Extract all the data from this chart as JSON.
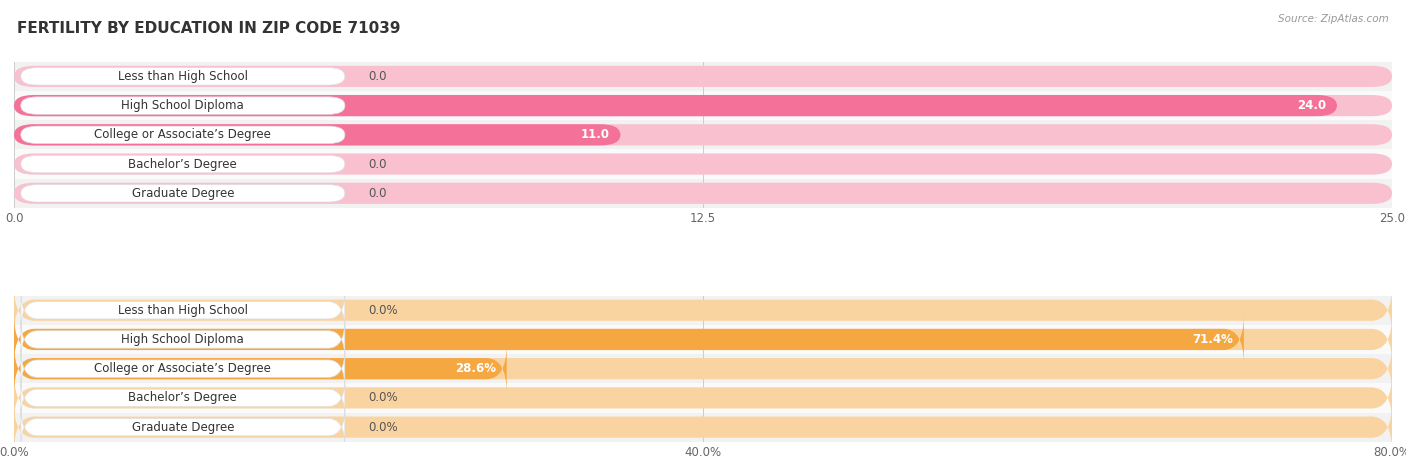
{
  "title": "FERTILITY BY EDUCATION IN ZIP CODE 71039",
  "source": "Source: ZipAtlas.com",
  "top_chart": {
    "categories": [
      "Less than High School",
      "High School Diploma",
      "College or Associate’s Degree",
      "Bachelor’s Degree",
      "Graduate Degree"
    ],
    "values": [
      0.0,
      24.0,
      11.0,
      0.0,
      0.0
    ],
    "xlim": [
      0,
      25.0
    ],
    "xticks": [
      0.0,
      12.5,
      25.0
    ],
    "bar_color": "#F4719A",
    "bar_bg_color": "#F9C0D0",
    "label_color": "#444444",
    "row_colors": [
      "#f2f2f2",
      "#fafafa",
      "#f2f2f2",
      "#fafafa",
      "#f2f2f2"
    ]
  },
  "bottom_chart": {
    "categories": [
      "Less than High School",
      "High School Diploma",
      "College or Associate’s Degree",
      "Bachelor’s Degree",
      "Graduate Degree"
    ],
    "values": [
      0.0,
      71.4,
      28.6,
      0.0,
      0.0
    ],
    "xlim": [
      0,
      80.0
    ],
    "xticks": [
      0.0,
      40.0,
      80.0
    ],
    "bar_color": "#F5A742",
    "bar_bg_color": "#FAD4A0",
    "label_color": "#444444",
    "row_colors": [
      "#f2f2f2",
      "#fafafa",
      "#f2f2f2",
      "#fafafa",
      "#f2f2f2"
    ]
  },
  "bg_color": "#ffffff",
  "title_fontsize": 11,
  "label_fontsize": 8.5,
  "value_fontsize": 8.5,
  "axis_fontsize": 8.5
}
